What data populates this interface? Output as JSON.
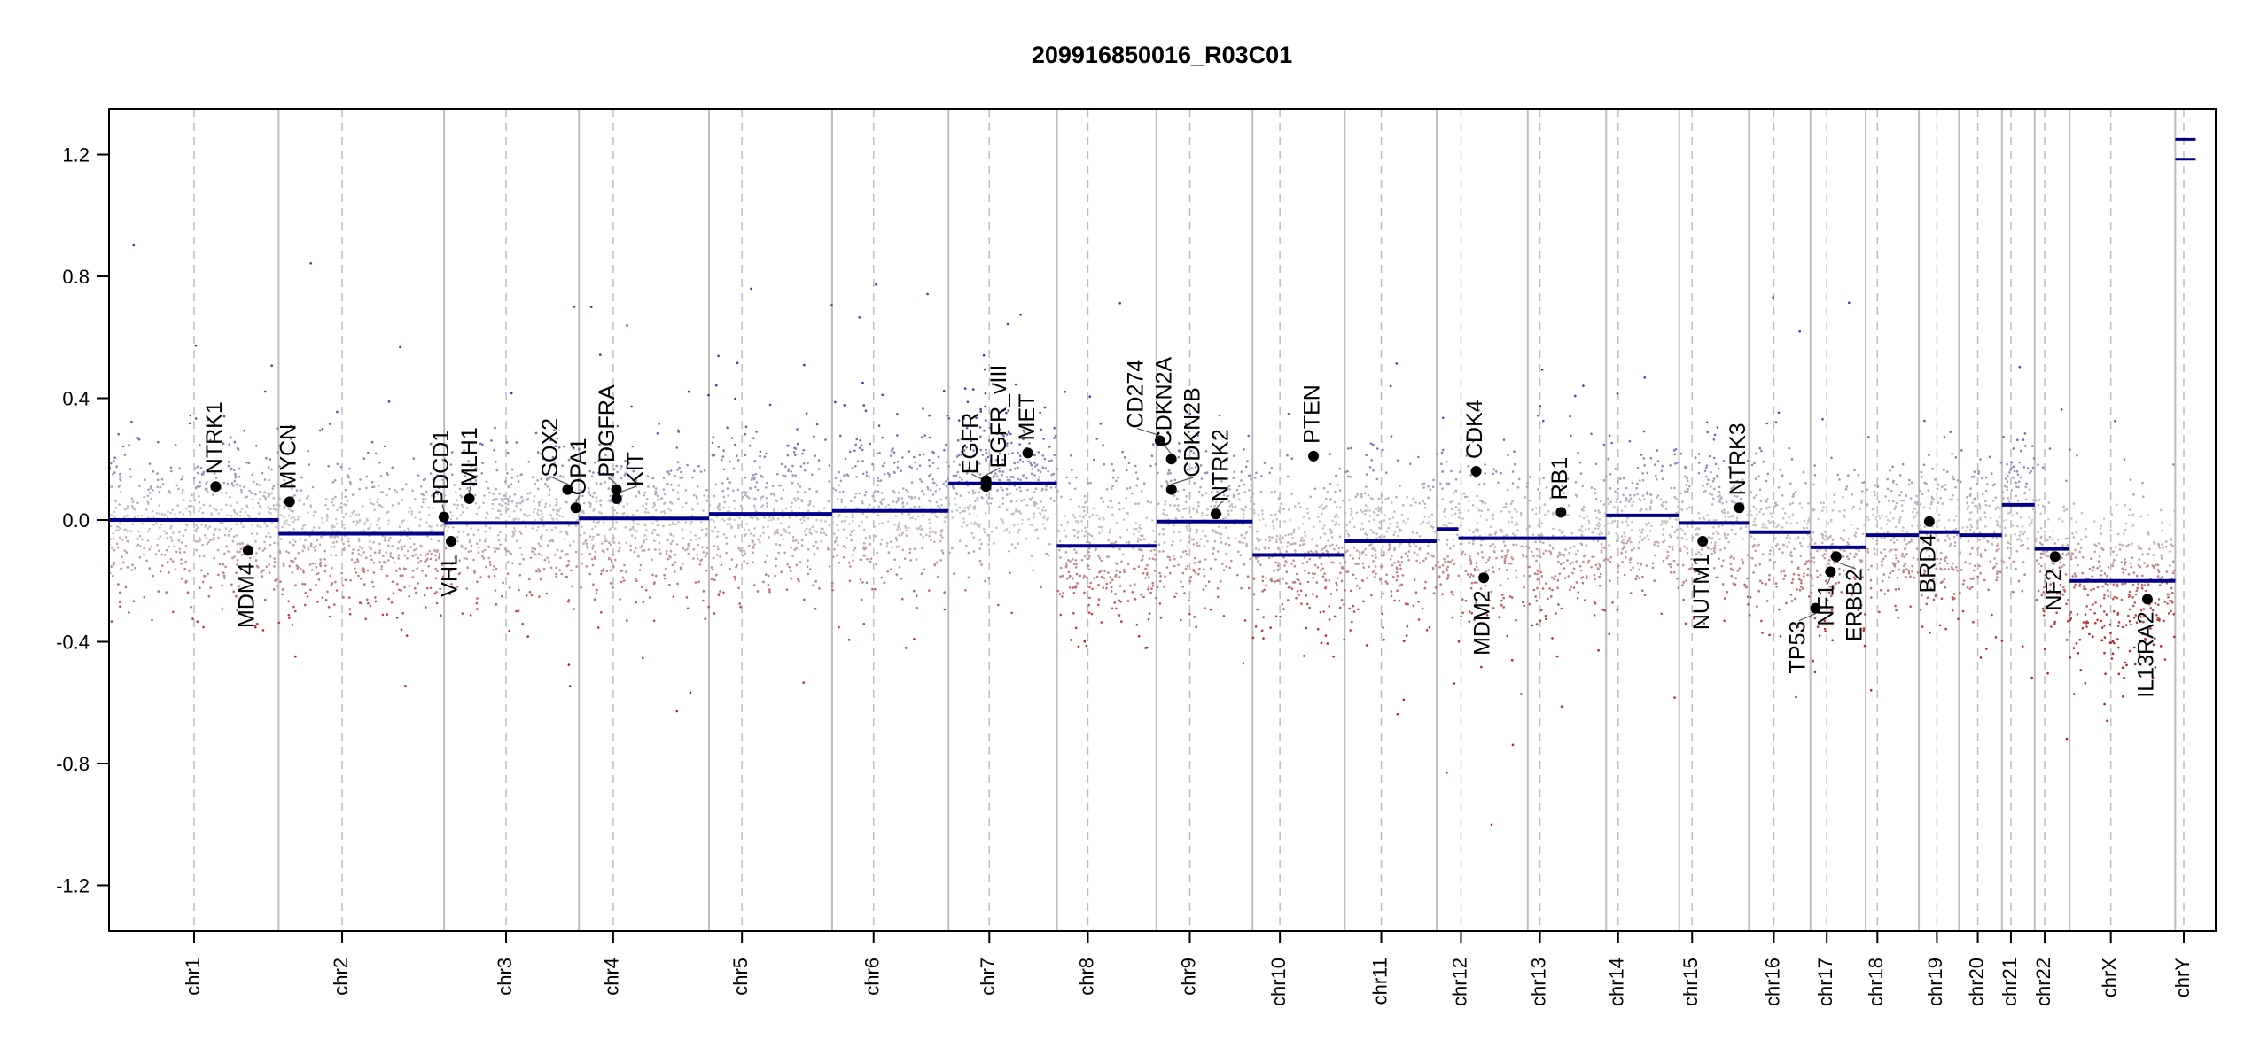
{
  "chart_data": {
    "type": "scatter",
    "title": "209916850016_R03C01",
    "xlabel": "",
    "ylabel": "",
    "ylim": [
      -1.35,
      1.35
    ],
    "yticks": [
      -1.2,
      -0.8,
      -0.4,
      0.0,
      0.4,
      0.8,
      1.2
    ],
    "ytick_labels": [
      "-1.2",
      "-0.8",
      "-0.4",
      "0.0",
      "0.4",
      "0.8",
      "1.2"
    ],
    "grid": false,
    "colors": {
      "segment": "#00008b",
      "gain": "#3a3aa8",
      "neutral": "#c8c8c8",
      "loss": "#b22222",
      "boundary": "#bdbdbd",
      "centromere": "#bdbdbd",
      "gene_dot": "#000000"
    },
    "chromosomes": [
      {
        "name": "chr1",
        "length_mb": 249.3,
        "centromere_mb": 125.0
      },
      {
        "name": "chr2",
        "length_mb": 243.2,
        "centromere_mb": 93.3
      },
      {
        "name": "chr3",
        "length_mb": 198.0,
        "centromere_mb": 91.0
      },
      {
        "name": "chr4",
        "length_mb": 191.2,
        "centromere_mb": 50.4
      },
      {
        "name": "chr5",
        "length_mb": 180.9,
        "centromere_mb": 48.4
      },
      {
        "name": "chr6",
        "length_mb": 171.1,
        "centromere_mb": 61.0
      },
      {
        "name": "chr7",
        "length_mb": 159.1,
        "centromere_mb": 59.9
      },
      {
        "name": "chr8",
        "length_mb": 146.4,
        "centromere_mb": 45.6
      },
      {
        "name": "chr9",
        "length_mb": 141.2,
        "centromere_mb": 49.0
      },
      {
        "name": "chr10",
        "length_mb": 135.5,
        "centromere_mb": 40.2
      },
      {
        "name": "chr11",
        "length_mb": 135.0,
        "centromere_mb": 53.7
      },
      {
        "name": "chr12",
        "length_mb": 133.9,
        "centromere_mb": 35.8
      },
      {
        "name": "chr13",
        "length_mb": 115.2,
        "centromere_mb": 17.9
      },
      {
        "name": "chr14",
        "length_mb": 107.3,
        "centromere_mb": 17.6
      },
      {
        "name": "chr15",
        "length_mb": 102.5,
        "centromere_mb": 19.0
      },
      {
        "name": "chr16",
        "length_mb": 90.4,
        "centromere_mb": 36.6
      },
      {
        "name": "chr17",
        "length_mb": 81.2,
        "centromere_mb": 24.0
      },
      {
        "name": "chr18",
        "length_mb": 78.1,
        "centromere_mb": 17.2
      },
      {
        "name": "chr19",
        "length_mb": 59.1,
        "centromere_mb": 26.5
      },
      {
        "name": "chr20",
        "length_mb": 63.0,
        "centromere_mb": 27.5
      },
      {
        "name": "chr21",
        "length_mb": 48.1,
        "centromere_mb": 13.2
      },
      {
        "name": "chr22",
        "length_mb": 51.3,
        "centromere_mb": 14.7
      },
      {
        "name": "chrX",
        "length_mb": 155.3,
        "centromere_mb": 60.6
      },
      {
        "name": "chrY",
        "length_mb": 59.4,
        "centromere_mb": 12.5
      }
    ],
    "segments": [
      {
        "chr": "chr1",
        "start_mb": 0,
        "end_mb": 249.3,
        "value": 0.0
      },
      {
        "chr": "chr2",
        "start_mb": 0,
        "end_mb": 243.2,
        "value": -0.045
      },
      {
        "chr": "chr3",
        "start_mb": 0,
        "end_mb": 198.0,
        "value": -0.01
      },
      {
        "chr": "chr4",
        "start_mb": 0,
        "end_mb": 191.2,
        "value": 0.005
      },
      {
        "chr": "chr5",
        "start_mb": 0,
        "end_mb": 180.9,
        "value": 0.02
      },
      {
        "chr": "chr6",
        "start_mb": 0,
        "end_mb": 171.1,
        "value": 0.03
      },
      {
        "chr": "chr7",
        "start_mb": 0,
        "end_mb": 159.1,
        "value": 0.12
      },
      {
        "chr": "chr8",
        "start_mb": 0,
        "end_mb": 146.4,
        "value": -0.085
      },
      {
        "chr": "chr9",
        "start_mb": 0,
        "end_mb": 141.2,
        "value": -0.005
      },
      {
        "chr": "chr10",
        "start_mb": 0,
        "end_mb": 135.5,
        "value": -0.115
      },
      {
        "chr": "chr11",
        "start_mb": 0,
        "end_mb": 135.0,
        "value": -0.07
      },
      {
        "chr": "chr12",
        "start_mb": 0,
        "end_mb": 32,
        "value": -0.03
      },
      {
        "chr": "chr12",
        "start_mb": 32,
        "end_mb": 133.9,
        "value": -0.06
      },
      {
        "chr": "chr13",
        "start_mb": 0,
        "end_mb": 115.2,
        "value": -0.06
      },
      {
        "chr": "chr14",
        "start_mb": 0,
        "end_mb": 107.3,
        "value": 0.015
      },
      {
        "chr": "chr15",
        "start_mb": 0,
        "end_mb": 102.5,
        "value": -0.01
      },
      {
        "chr": "chr16",
        "start_mb": 0,
        "end_mb": 90.4,
        "value": -0.04
      },
      {
        "chr": "chr17",
        "start_mb": 0,
        "end_mb": 81.2,
        "value": -0.09
      },
      {
        "chr": "chr18",
        "start_mb": 0,
        "end_mb": 78.1,
        "value": -0.05
      },
      {
        "chr": "chr19",
        "start_mb": 0,
        "end_mb": 59.1,
        "value": -0.04
      },
      {
        "chr": "chr20",
        "start_mb": 0,
        "end_mb": 63.0,
        "value": -0.05
      },
      {
        "chr": "chr21",
        "start_mb": 0,
        "end_mb": 48.1,
        "value": 0.05
      },
      {
        "chr": "chr22",
        "start_mb": 0,
        "end_mb": 51.3,
        "value": -0.095
      },
      {
        "chr": "chrX",
        "start_mb": 0,
        "end_mb": 155.3,
        "value": -0.2
      },
      {
        "chr": "chrY",
        "start_mb": 0,
        "end_mb": 30,
        "value": 1.25
      },
      {
        "chr": "chrY",
        "start_mb": 0,
        "end_mb": 30,
        "value": 1.185
      }
    ],
    "genes": [
      {
        "name": "NTRK1",
        "chr": "chr1",
        "pos_mb": 156.8,
        "value": 0.11
      },
      {
        "name": "MDM4",
        "chr": "chr1",
        "pos_mb": 204.5,
        "value": -0.1
      },
      {
        "name": "MYCN",
        "chr": "chr2",
        "pos_mb": 16.1,
        "value": 0.06
      },
      {
        "name": "PDCD1",
        "chr": "chr2",
        "pos_mb": 242.8,
        "value": 0.01
      },
      {
        "name": "VHL",
        "chr": "chr3",
        "pos_mb": 10.2,
        "value": -0.07
      },
      {
        "name": "MLH1",
        "chr": "chr3",
        "pos_mb": 37.0,
        "value": 0.07
      },
      {
        "name": "SOX2",
        "chr": "chr3",
        "pos_mb": 181.4,
        "value": 0.1
      },
      {
        "name": "OPA1",
        "chr": "chr3",
        "pos_mb": 193.4,
        "value": 0.04
      },
      {
        "name": "KIT",
        "chr": "chr4",
        "pos_mb": 55.5,
        "value": 0.07
      },
      {
        "name": "PDGFRA",
        "chr": "chr4",
        "pos_mb": 55.1,
        "value": 0.1
      },
      {
        "name": "EGFR",
        "chr": "chr7",
        "pos_mb": 55.1,
        "value": 0.11
      },
      {
        "name": "EGFR_vIII",
        "chr": "chr7",
        "pos_mb": 55.2,
        "value": 0.13
      },
      {
        "name": "MET",
        "chr": "chr7",
        "pos_mb": 116.3,
        "value": 0.22
      },
      {
        "name": "CD274",
        "chr": "chr9",
        "pos_mb": 5.4,
        "value": 0.26
      },
      {
        "name": "CDKN2A",
        "chr": "chr9",
        "pos_mb": 21.9,
        "value": 0.2
      },
      {
        "name": "CDKN2B",
        "chr": "chr9",
        "pos_mb": 22.0,
        "value": 0.1
      },
      {
        "name": "NTRK2",
        "chr": "chr9",
        "pos_mb": 87.3,
        "value": 0.02
      },
      {
        "name": "PTEN",
        "chr": "chr10",
        "pos_mb": 89.6,
        "value": 0.21
      },
      {
        "name": "CDK4",
        "chr": "chr12",
        "pos_mb": 58.1,
        "value": 0.16
      },
      {
        "name": "MDM2",
        "chr": "chr12",
        "pos_mb": 69.2,
        "value": -0.19
      },
      {
        "name": "RB1",
        "chr": "chr13",
        "pos_mb": 48.9,
        "value": 0.025
      },
      {
        "name": "NUTM1",
        "chr": "chr15",
        "pos_mb": 34.6,
        "value": -0.07
      },
      {
        "name": "NTRK3",
        "chr": "chr15",
        "pos_mb": 88.4,
        "value": 0.04
      },
      {
        "name": "TP53",
        "chr": "chr17",
        "pos_mb": 7.5,
        "value": -0.29
      },
      {
        "name": "NF1",
        "chr": "chr17",
        "pos_mb": 29.5,
        "value": -0.17
      },
      {
        "name": "ERBB2",
        "chr": "chr17",
        "pos_mb": 37.8,
        "value": -0.12
      },
      {
        "name": "BRD4",
        "chr": "chr19",
        "pos_mb": 15.4,
        "value": -0.005
      },
      {
        "name": "NF2",
        "chr": "chr22",
        "pos_mb": 30.0,
        "value": -0.12
      },
      {
        "name": "IL13RA2",
        "chr": "chrX",
        "pos_mb": 114.3,
        "value": -0.26
      }
    ],
    "probe_noise_sd": 0.13
  }
}
